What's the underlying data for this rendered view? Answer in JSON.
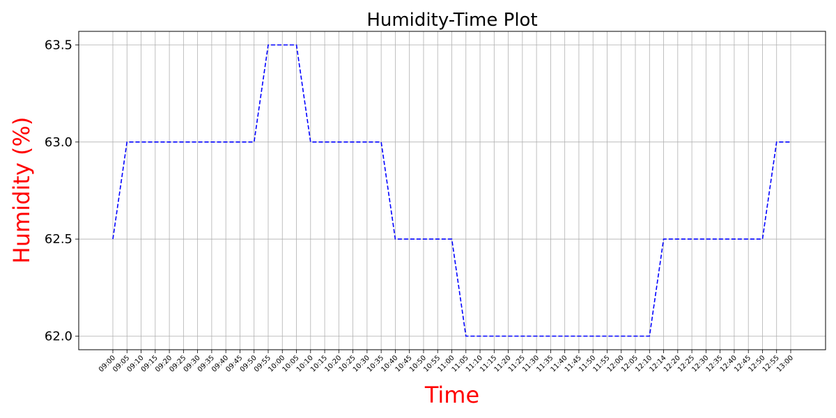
{
  "chart_data": {
    "type": "line",
    "title": "Humidity-Time Plot",
    "xlabel": "Time",
    "ylabel": "Humidity (%)",
    "label_color": "#ff0000",
    "line_color": "#0000ff",
    "line_style": "dashed",
    "grid": true,
    "ylim": [
      61.93,
      63.57
    ],
    "yticks": [
      "62.0",
      "62.5",
      "63.0",
      "63.5"
    ],
    "x": [
      "09:00",
      "09:05",
      "09:10",
      "09:15",
      "09:20",
      "09:25",
      "09:30",
      "09:35",
      "09:40",
      "09:45",
      "09:50",
      "09:55",
      "10:00",
      "10:05",
      "10:10",
      "10:15",
      "10:20",
      "10:25",
      "10:30",
      "10:35",
      "10:40",
      "10:45",
      "10:50",
      "10:55",
      "11:00",
      "11:05",
      "11:10",
      "11:15",
      "11:20",
      "11:25",
      "11:30",
      "11:35",
      "11:40",
      "11:45",
      "11:50",
      "11:55",
      "12:00",
      "12:05",
      "12:10",
      "12:14",
      "12:20",
      "12:25",
      "12:30",
      "12:35",
      "12:40",
      "12:45",
      "12:50",
      "12:55",
      "13:00"
    ],
    "values": [
      62.5,
      63.0,
      63.0,
      63.0,
      63.0,
      63.0,
      63.0,
      63.0,
      63.0,
      63.0,
      63.0,
      63.5,
      63.5,
      63.5,
      63.0,
      63.0,
      63.0,
      63.0,
      63.0,
      63.0,
      62.5,
      62.5,
      62.5,
      62.5,
      62.5,
      62.0,
      62.0,
      62.0,
      62.0,
      62.0,
      62.0,
      62.0,
      62.0,
      62.0,
      62.0,
      62.0,
      62.0,
      62.0,
      62.0,
      62.5,
      62.5,
      62.5,
      62.5,
      62.5,
      62.5,
      62.5,
      62.5,
      63.0,
      63.0
    ]
  }
}
